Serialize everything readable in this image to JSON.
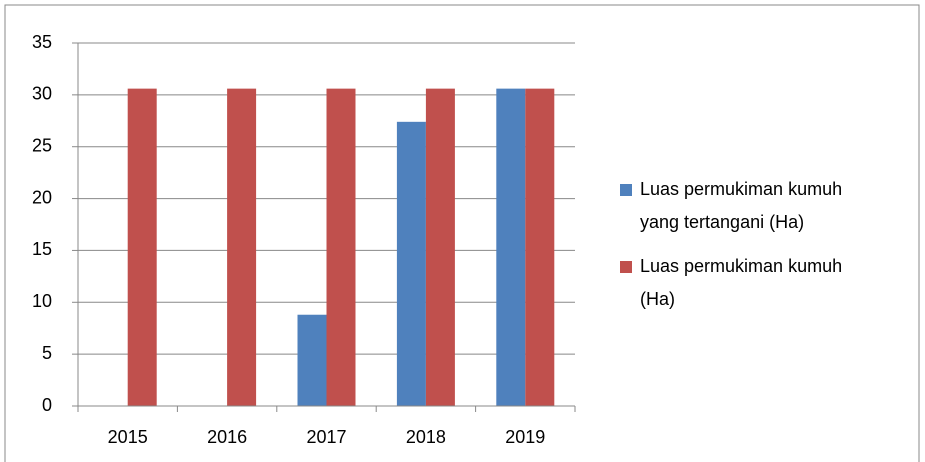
{
  "chart_data": {
    "type": "bar",
    "categories": [
      "2015",
      "2016",
      "2017",
      "2018",
      "2019"
    ],
    "series": [
      {
        "name": "Luas permukiman kumuh yang tertangani (Ha)",
        "color": "#4f81bd",
        "values": [
          0,
          0,
          8.8,
          27.4,
          30.6
        ]
      },
      {
        "name": "Luas permukiman kumuh (Ha)",
        "color": "#c0504d",
        "values": [
          30.6,
          30.6,
          30.6,
          30.6,
          30.6
        ]
      }
    ],
    "ylim": [
      0,
      35
    ],
    "yticks": [
      0,
      5,
      10,
      15,
      20,
      25,
      30,
      35
    ],
    "grid": true,
    "legend": "right"
  }
}
